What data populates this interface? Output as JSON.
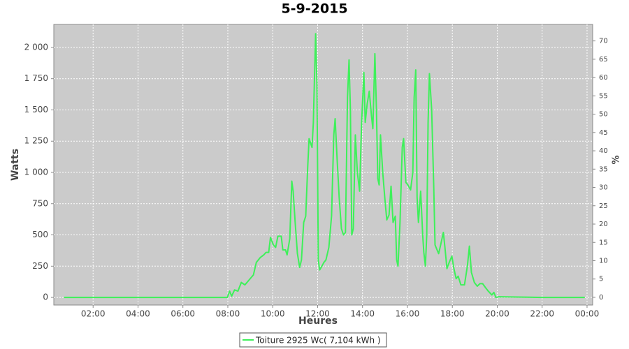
{
  "chart_data": {
    "type": "line",
    "title": "5-9-2015",
    "x_label": "Heures",
    "y_label": "Watts",
    "y2_label": "%",
    "x": [
      0.7,
      2,
      4,
      6,
      7.9,
      7.98,
      8.08,
      8.17,
      8.3,
      8.45,
      8.6,
      8.76,
      8.95,
      9.14,
      9.27,
      9.45,
      9.6,
      9.7,
      9.82,
      9.9,
      10.03,
      10.13,
      10.23,
      10.38,
      10.45,
      10.57,
      10.64,
      10.76,
      10.85,
      10.91,
      11.0,
      11.1,
      11.2,
      11.28,
      11.38,
      11.47,
      11.56,
      11.62,
      11.75,
      11.81,
      11.91,
      11.97,
      12.03,
      12.09,
      12.19,
      12.28,
      12.37,
      12.5,
      12.62,
      12.72,
      12.78,
      12.87,
      12.96,
      13.06,
      13.15,
      13.24,
      13.33,
      13.4,
      13.46,
      13.52,
      13.59,
      13.68,
      13.77,
      13.87,
      13.96,
      14.06,
      14.12,
      14.21,
      14.3,
      14.4,
      14.46,
      14.55,
      14.62,
      14.68,
      14.74,
      14.8,
      14.9,
      14.99,
      15.08,
      15.18,
      15.27,
      15.36,
      15.46,
      15.52,
      15.58,
      15.67,
      15.77,
      15.83,
      15.93,
      16.02,
      16.14,
      16.24,
      16.3,
      16.37,
      16.43,
      16.49,
      16.59,
      16.68,
      16.73,
      16.8,
      16.86,
      16.92,
      16.98,
      17.08,
      17.17,
      17.23,
      17.32,
      17.39,
      17.48,
      17.6,
      17.67,
      17.76,
      17.86,
      17.98,
      18.07,
      18.17,
      18.26,
      18.38,
      18.54,
      18.67,
      18.76,
      18.85,
      18.98,
      19.11,
      19.23,
      19.35,
      19.47,
      19.6,
      19.76,
      19.85,
      19.94,
      20.07,
      22,
      23.9
    ],
    "series": [
      {
        "name": "Toiture 2925 Wc( 7,104 kWh )",
        "color": "#3ef05a",
        "values": [
          0,
          0,
          0,
          0,
          0,
          0,
          50,
          10,
          60,
          50,
          120,
          100,
          140,
          180,
          280,
          320,
          340,
          360,
          360,
          480,
          420,
          400,
          490,
          490,
          380,
          380,
          340,
          470,
          930,
          850,
          600,
          350,
          240,
          300,
          600,
          650,
          1050,
          1270,
          1200,
          1400,
          2110,
          1700,
          300,
          220,
          250,
          280,
          300,
          400,
          650,
          1300,
          1430,
          1100,
          800,
          550,
          500,
          520,
          1600,
          1900,
          1500,
          500,
          550,
          1300,
          1000,
          850,
          1400,
          1800,
          1400,
          1550,
          1650,
          1450,
          1350,
          1950,
          1500,
          950,
          900,
          1300,
          1000,
          800,
          620,
          660,
          890,
          600,
          650,
          300,
          250,
          600,
          1200,
          1270,
          920,
          900,
          860,
          1000,
          1600,
          1820,
          800,
          600,
          850,
          500,
          360,
          250,
          500,
          1400,
          1790,
          1500,
          900,
          420,
          380,
          350,
          420,
          520,
          400,
          230,
          280,
          330,
          230,
          150,
          170,
          100,
          100,
          250,
          410,
          200,
          120,
          90,
          110,
          110,
          80,
          50,
          20,
          40,
          0,
          5,
          0,
          0
        ]
      }
    ],
    "xlim": [
      0.25,
      24.25
    ],
    "xticks": [
      {
        "value": 2,
        "label": "02:00"
      },
      {
        "value": 4,
        "label": "04:00"
      },
      {
        "value": 6,
        "label": "06:00"
      },
      {
        "value": 8,
        "label": "08:00"
      },
      {
        "value": 10,
        "label": "10:00"
      },
      {
        "value": 12,
        "label": "12:00"
      },
      {
        "value": 14,
        "label": "14:00"
      },
      {
        "value": 16,
        "label": "16:00"
      },
      {
        "value": 18,
        "label": "18:00"
      },
      {
        "value": 20,
        "label": "20:00"
      },
      {
        "value": 22,
        "label": "22:00"
      },
      {
        "value": 24,
        "label": "00:00"
      }
    ],
    "ylim": [
      -61,
      2184
    ],
    "yticks": [
      0,
      250,
      500,
      750,
      {
        "value": 1000,
        "label": "1 000"
      },
      {
        "value": 1250,
        "label": "1 250"
      },
      {
        "value": 1500,
        "label": "1 500"
      },
      {
        "value": 1750,
        "label": "1 750"
      },
      {
        "value": 2000,
        "label": "2 000"
      }
    ],
    "y2lim": [
      -2.1,
      74.5
    ],
    "y2ticks": [
      0,
      5,
      10,
      15,
      20,
      25,
      30,
      35,
      40,
      45,
      50,
      55,
      60,
      65,
      70
    ],
    "grid": true,
    "legend": "bottom"
  }
}
